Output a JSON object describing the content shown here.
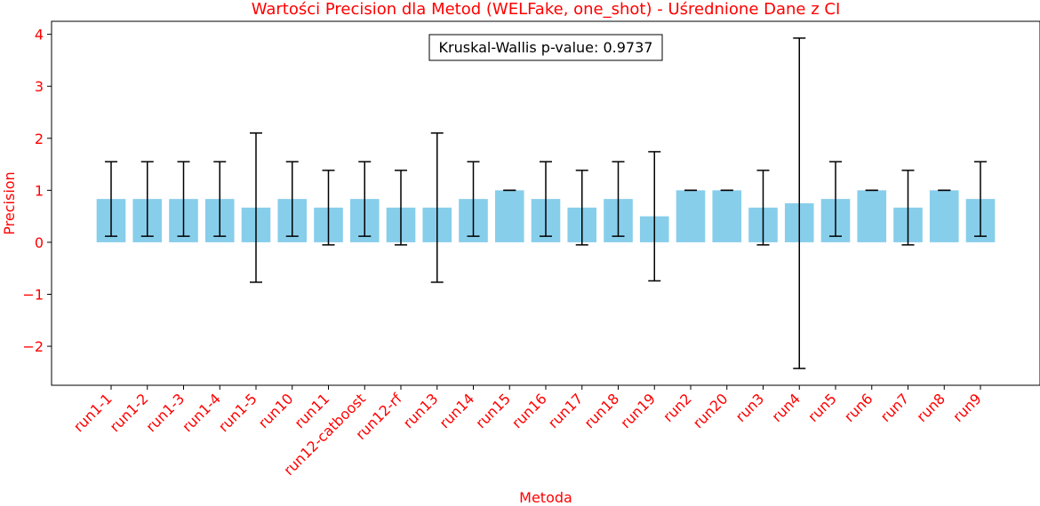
{
  "chart_data": {
    "type": "bar",
    "title": "Wartości Precision dla Metod (WELFake, one_shot) - Uśrednione Dane z CI",
    "xlabel": "Metoda",
    "ylabel": "Precision",
    "annotation": "Kruskal-Wallis p-value: 0.9737",
    "ylim": [
      -2.75,
      4.25
    ],
    "yticks": [
      -2,
      -1,
      0,
      1,
      2,
      3,
      4
    ],
    "ytick_labels": [
      "−2",
      "−1",
      "0",
      "1",
      "2",
      "3",
      "4"
    ],
    "grid": false,
    "categories": [
      "run1-1",
      "run1-2",
      "run1-3",
      "run1-4",
      "run1-5",
      "run10",
      "run11",
      "run12-catboost",
      "run12-rf",
      "run13",
      "run14",
      "run15",
      "run16",
      "run17",
      "run18",
      "run19",
      "run2",
      "run20",
      "run3",
      "run4",
      "run5",
      "run6",
      "run7",
      "run8",
      "run9"
    ],
    "values": [
      0.833,
      0.833,
      0.833,
      0.833,
      0.667,
      0.833,
      0.667,
      0.833,
      0.667,
      0.667,
      0.833,
      1.0,
      0.833,
      0.667,
      0.833,
      0.5,
      1.0,
      1.0,
      0.667,
      0.75,
      0.833,
      1.0,
      0.667,
      1.0,
      0.833
    ],
    "ci_lower": [
      0.116,
      0.116,
      0.116,
      0.116,
      -0.768,
      0.116,
      -0.05,
      0.116,
      -0.05,
      -0.768,
      0.116,
      1.0,
      0.116,
      -0.05,
      0.116,
      -0.742,
      1.0,
      1.0,
      -0.05,
      -2.427,
      0.116,
      1.0,
      -0.05,
      1.0,
      0.116
    ],
    "ci_upper": [
      1.55,
      1.55,
      1.55,
      1.55,
      2.101,
      1.55,
      1.383,
      1.55,
      1.383,
      2.101,
      1.55,
      1.0,
      1.55,
      1.383,
      1.55,
      1.742,
      1.0,
      1.0,
      1.383,
      3.927,
      1.55,
      1.0,
      1.383,
      1.0,
      1.55
    ],
    "colors": {
      "bar": "#87ceeb",
      "error": "#000000",
      "label": "#ff0000",
      "axis": "#000000"
    }
  }
}
